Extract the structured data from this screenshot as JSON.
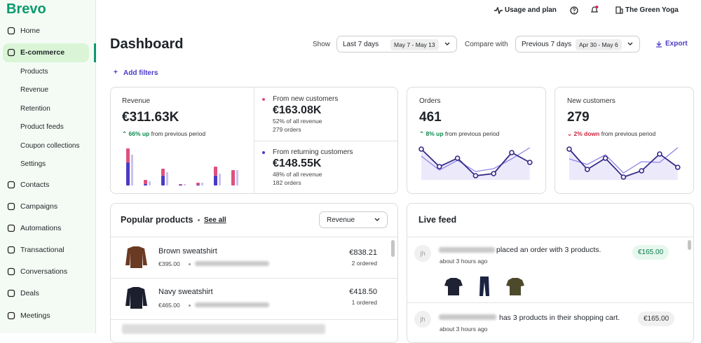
{
  "sidebar": {
    "logo": "Brevo",
    "items": [
      "Home",
      "E-commerce",
      "Products",
      "Revenue",
      "Retention",
      "Product feeds",
      "Coupon collections",
      "Settings",
      "Contacts",
      "Campaigns",
      "Automations",
      "Transactional",
      "Conversations",
      "Deals",
      "Meetings"
    ]
  },
  "topbar": {
    "usage": "Usage and plan",
    "account": "The Green Yoga"
  },
  "header": {
    "title": "Dashboard",
    "show_label": "Show",
    "period": "Last 7 days",
    "period_dates": "May 7 - May 13",
    "compare_label": "Compare with",
    "compare_period": "Previous 7 days",
    "compare_dates": "Apr 30 - May 6",
    "export": "Export",
    "add_filters": "Add filters"
  },
  "revenue": {
    "label": "Revenue",
    "value": "€311.63K",
    "change": "66% up",
    "change_text": "from previous period",
    "new": {
      "label": "From new customers",
      "value": "€163.08K",
      "share": "52% of all revenue",
      "orders": "279 orders"
    },
    "returning": {
      "label": "From returning customers",
      "value": "€148.55K",
      "share": "48% of all revenue",
      "orders": "182 orders"
    },
    "chart": {
      "new": [
        20,
        6,
        10,
        1,
        3,
        13,
        22
      ],
      "returning": [
        33,
        2,
        14,
        1,
        1,
        14,
        0
      ],
      "previous": [
        44,
        6,
        19,
        2,
        4,
        17,
        22
      ]
    }
  },
  "orders": {
    "label": "Orders",
    "value": "461",
    "change": "8% up",
    "change_text": "from previous period",
    "chart": {
      "current": [
        44,
        19,
        31,
        6,
        9,
        39,
        25
      ],
      "previous": [
        34,
        14,
        28,
        12,
        16,
        30,
        46
      ]
    }
  },
  "new_customers": {
    "label": "New customers",
    "value": "279",
    "change": "2% down",
    "change_text": "from previous period",
    "chart": {
      "current": [
        44,
        15,
        31,
        4,
        13,
        37,
        18
      ],
      "previous": [
        30,
        22,
        36,
        10,
        26,
        25,
        46
      ]
    }
  },
  "popular": {
    "title": "Popular products",
    "see_all": "See all",
    "metric": "Revenue",
    "rows": [
      {
        "name": "Brown sweatshirt",
        "price": "€395.00",
        "revenue": "€838.21",
        "ordered": "2 ordered"
      },
      {
        "name": "Navy sweatshirt",
        "price": "€465.00",
        "revenue": "€418.50",
        "ordered": "1 ordered"
      }
    ]
  },
  "feed": {
    "title": "Live feed",
    "items": [
      {
        "initials": "jh",
        "text": "placed an order with 3 products.",
        "time": "about 3 hours ago",
        "amount": "€165.00"
      },
      {
        "initials": "jh",
        "text": "has 3 products in their shopping cart.",
        "time": "about 3 hours ago",
        "amount": "€165.00"
      }
    ]
  }
}
